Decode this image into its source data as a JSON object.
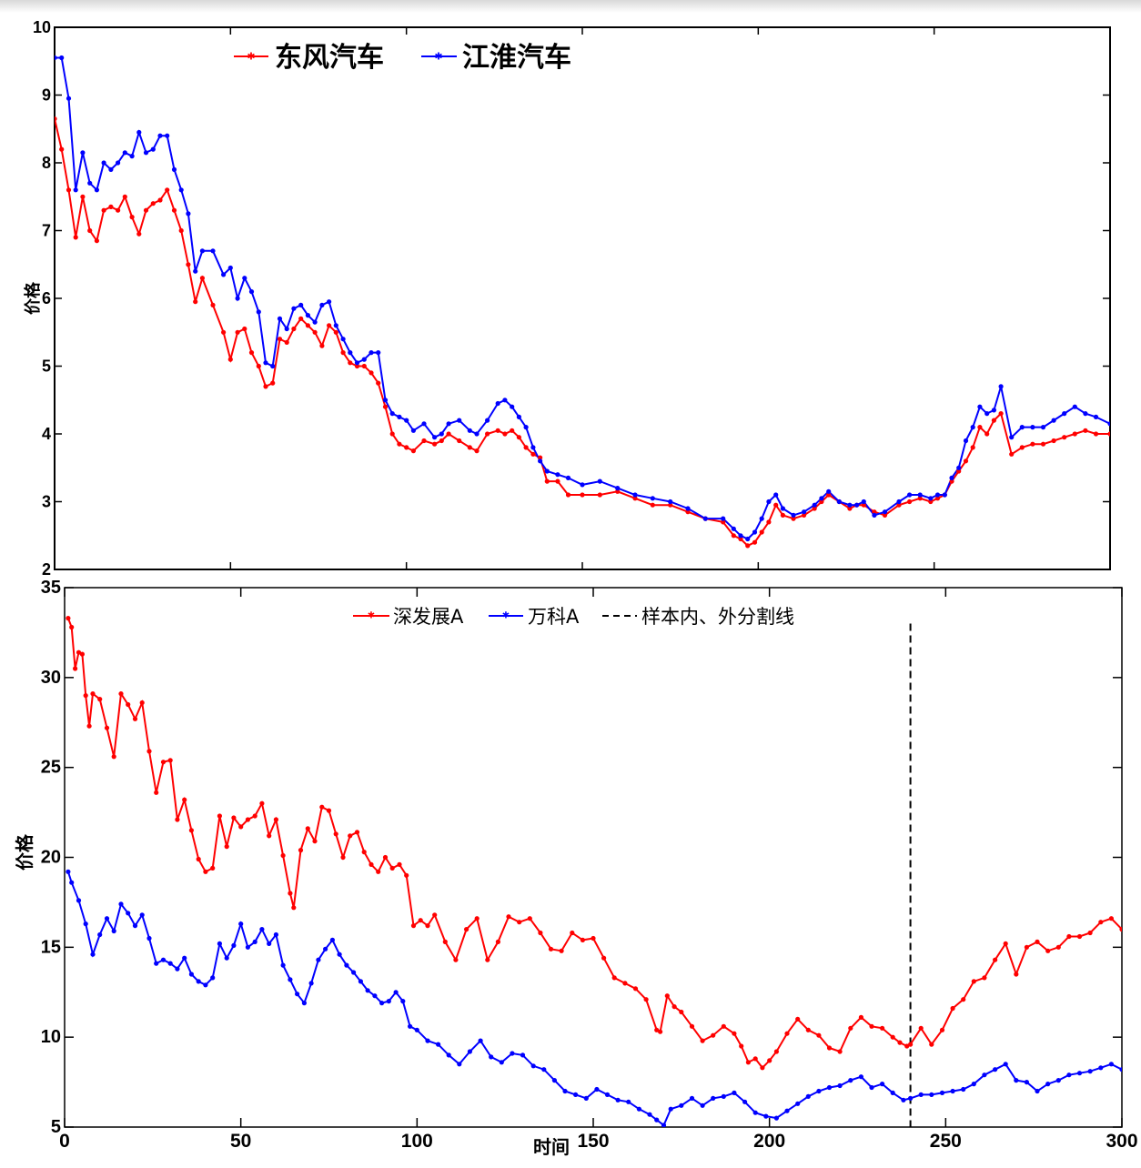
{
  "chart_data": [
    {
      "type": "line",
      "title": "",
      "xlabel": "",
      "ylabel": "价格",
      "xlim": [
        0,
        300
      ],
      "ylim": [
        2,
        10
      ],
      "yticks": [
        "10",
        "9",
        "8",
        "7",
        "6",
        "5",
        "4",
        "3",
        "2"
      ],
      "legend_position": "top-left",
      "series": [
        {
          "name": "东风汽车",
          "color": "#ff0000",
          "marker": "star",
          "x": [
            0,
            2,
            4,
            6,
            8,
            10,
            12,
            14,
            16,
            18,
            20,
            22,
            24,
            26,
            28,
            30,
            32,
            34,
            36,
            38,
            40,
            42,
            45,
            48,
            50,
            52,
            54,
            56,
            58,
            60,
            62,
            64,
            66,
            68,
            70,
            72,
            74,
            76,
            78,
            80,
            82,
            84,
            86,
            88,
            90,
            92,
            94,
            96,
            98,
            100,
            102,
            105,
            108,
            110,
            112,
            115,
            118,
            120,
            123,
            126,
            128,
            130,
            132,
            134,
            136,
            138,
            140,
            143,
            146,
            150,
            155,
            160,
            165,
            170,
            175,
            180,
            185,
            190,
            193,
            195,
            197,
            199,
            201,
            203,
            205,
            207,
            210,
            213,
            216,
            218,
            220,
            223,
            226,
            228,
            230,
            233,
            236,
            240,
            243,
            246,
            249,
            251,
            253,
            255,
            257,
            259,
            261,
            263,
            265,
            267,
            269,
            272,
            275,
            278,
            281,
            284,
            287,
            290,
            293,
            296,
            300
          ],
          "y": [
            8.65,
            8.2,
            7.6,
            6.9,
            7.5,
            7.0,
            6.85,
            7.3,
            7.35,
            7.3,
            7.5,
            7.2,
            6.95,
            7.3,
            7.4,
            7.45,
            7.6,
            7.3,
            7.0,
            6.5,
            5.95,
            6.3,
            5.9,
            5.5,
            5.1,
            5.5,
            5.55,
            5.2,
            5.0,
            4.7,
            4.75,
            5.4,
            5.35,
            5.55,
            5.7,
            5.6,
            5.5,
            5.3,
            5.6,
            5.5,
            5.2,
            5.05,
            5.0,
            5.0,
            4.9,
            4.75,
            4.4,
            4.0,
            3.85,
            3.8,
            3.75,
            3.9,
            3.85,
            3.9,
            4.0,
            3.9,
            3.8,
            3.75,
            4.0,
            4.05,
            4.0,
            4.05,
            3.95,
            3.8,
            3.7,
            3.65,
            3.3,
            3.3,
            3.1,
            3.1,
            3.1,
            3.15,
            3.05,
            2.95,
            2.95,
            2.85,
            2.75,
            2.7,
            2.5,
            2.45,
            2.35,
            2.4,
            2.55,
            2.7,
            2.95,
            2.8,
            2.75,
            2.8,
            2.9,
            3.0,
            3.1,
            3.0,
            2.9,
            2.95,
            2.95,
            2.85,
            2.8,
            2.95,
            3.0,
            3.05,
            3.0,
            3.05,
            3.1,
            3.3,
            3.45,
            3.6,
            3.8,
            4.1,
            4.0,
            4.2,
            4.3,
            3.7,
            3.8,
            3.85,
            3.85,
            3.9,
            3.95,
            4.0,
            4.05,
            4.0,
            4.0
          ]
        },
        {
          "name": "江淮汽车",
          "color": "#0000ff",
          "marker": "star",
          "x": [
            0,
            2,
            4,
            6,
            8,
            10,
            12,
            14,
            16,
            18,
            20,
            22,
            24,
            26,
            28,
            30,
            32,
            34,
            36,
            38,
            40,
            42,
            45,
            48,
            50,
            52,
            54,
            56,
            58,
            60,
            62,
            64,
            66,
            68,
            70,
            72,
            74,
            76,
            78,
            80,
            82,
            84,
            86,
            88,
            90,
            92,
            94,
            96,
            98,
            100,
            102,
            105,
            108,
            110,
            112,
            115,
            118,
            120,
            123,
            126,
            128,
            130,
            132,
            134,
            136,
            138,
            140,
            143,
            146,
            150,
            155,
            160,
            165,
            170,
            175,
            180,
            185,
            190,
            193,
            195,
            197,
            199,
            201,
            203,
            205,
            207,
            210,
            213,
            216,
            218,
            220,
            223,
            226,
            228,
            230,
            233,
            236,
            240,
            243,
            246,
            249,
            251,
            253,
            255,
            257,
            259,
            261,
            263,
            265,
            267,
            269,
            272,
            275,
            278,
            281,
            284,
            287,
            290,
            293,
            296,
            300
          ],
          "y": [
            9.55,
            9.55,
            8.95,
            7.6,
            8.15,
            7.7,
            7.6,
            8.0,
            7.9,
            8.0,
            8.15,
            8.1,
            8.45,
            8.15,
            8.2,
            8.4,
            8.4,
            7.9,
            7.6,
            7.25,
            6.4,
            6.7,
            6.7,
            6.35,
            6.45,
            6.0,
            6.3,
            6.1,
            5.8,
            5.05,
            5.0,
            5.7,
            5.55,
            5.85,
            5.9,
            5.75,
            5.65,
            5.9,
            5.95,
            5.6,
            5.4,
            5.2,
            5.05,
            5.1,
            5.2,
            5.2,
            4.5,
            4.3,
            4.25,
            4.2,
            4.05,
            4.15,
            3.95,
            4.0,
            4.15,
            4.2,
            4.05,
            4.0,
            4.2,
            4.45,
            4.5,
            4.4,
            4.25,
            4.1,
            3.8,
            3.6,
            3.45,
            3.4,
            3.35,
            3.25,
            3.3,
            3.2,
            3.1,
            3.05,
            3.0,
            2.9,
            2.75,
            2.75,
            2.6,
            2.5,
            2.45,
            2.55,
            2.75,
            3.0,
            3.1,
            2.9,
            2.8,
            2.85,
            2.95,
            3.05,
            3.15,
            3.0,
            2.95,
            2.95,
            3.0,
            2.8,
            2.85,
            3.0,
            3.1,
            3.1,
            3.05,
            3.1,
            3.1,
            3.35,
            3.5,
            3.9,
            4.1,
            4.4,
            4.3,
            4.35,
            4.7,
            3.95,
            4.1,
            4.1,
            4.1,
            4.2,
            4.3,
            4.4,
            4.3,
            4.25,
            4.15
          ]
        }
      ]
    },
    {
      "type": "line",
      "title": "",
      "xlabel": "时间",
      "ylabel": "价格",
      "xlim": [
        0,
        300
      ],
      "ylim": [
        5,
        35
      ],
      "xticks": [
        "0",
        "50",
        "100",
        "150",
        "200",
        "250",
        "300"
      ],
      "yticks": [
        "35",
        "30",
        "25",
        "20",
        "15",
        "10",
        "5"
      ],
      "legend_position": "top-center",
      "split_line": {
        "label": "样本内、外分割线",
        "x": 240,
        "y_top": 33
      },
      "series": [
        {
          "name": "深发展A",
          "color": "#ff0000",
          "marker": "star",
          "x": [
            1,
            2,
            3,
            4,
            5,
            6,
            7,
            8,
            10,
            12,
            14,
            16,
            18,
            20,
            22,
            24,
            26,
            28,
            30,
            32,
            34,
            36,
            38,
            40,
            42,
            44,
            46,
            48,
            50,
            52,
            54,
            56,
            58,
            60,
            62,
            64,
            65,
            67,
            69,
            71,
            73,
            75,
            77,
            79,
            81,
            83,
            85,
            87,
            89,
            91,
            93,
            95,
            97,
            99,
            101,
            103,
            105,
            108,
            111,
            114,
            117,
            120,
            123,
            126,
            129,
            132,
            135,
            138,
            141,
            144,
            147,
            150,
            153,
            156,
            159,
            162,
            165,
            168,
            169,
            171,
            173,
            175,
            178,
            181,
            184,
            187,
            190,
            192,
            194,
            196,
            198,
            200,
            202,
            205,
            208,
            211,
            214,
            217,
            220,
            223,
            226,
            229,
            232,
            235,
            237,
            239,
            240,
            243,
            246,
            249,
            252,
            255,
            258,
            261,
            264,
            267,
            270,
            273,
            276,
            279,
            282,
            285,
            288,
            291,
            294,
            297,
            300
          ],
          "y": [
            33.3,
            32.8,
            30.5,
            31.4,
            31.3,
            29.0,
            27.3,
            29.1,
            28.8,
            27.2,
            25.6,
            29.1,
            28.5,
            27.7,
            28.6,
            25.9,
            23.6,
            25.3,
            25.4,
            22.1,
            23.2,
            21.5,
            19.9,
            19.2,
            19.4,
            22.3,
            20.6,
            22.2,
            21.7,
            22.1,
            22.3,
            23.0,
            21.2,
            22.1,
            20.1,
            18.0,
            17.2,
            20.4,
            21.6,
            20.9,
            22.8,
            22.6,
            21.3,
            20.0,
            21.2,
            21.4,
            20.3,
            19.6,
            19.2,
            20.0,
            19.4,
            19.6,
            19.0,
            16.2,
            16.5,
            16.2,
            16.8,
            15.3,
            14.3,
            16.0,
            16.6,
            14.3,
            15.3,
            16.7,
            16.4,
            16.6,
            15.8,
            14.9,
            14.8,
            15.8,
            15.4,
            15.5,
            14.4,
            13.3,
            13.0,
            12.7,
            12.1,
            10.4,
            10.3,
            12.3,
            11.7,
            11.4,
            10.6,
            9.8,
            10.1,
            10.6,
            10.2,
            9.5,
            8.6,
            8.8,
            8.3,
            8.7,
            9.2,
            10.2,
            11.0,
            10.4,
            10.1,
            9.4,
            9.2,
            10.5,
            11.1,
            10.6,
            10.5,
            10.0,
            9.7,
            9.5,
            9.6,
            10.5,
            9.6,
            10.4,
            11.6,
            12.1,
            13.1,
            13.3,
            14.3,
            15.2,
            13.5,
            15.0,
            15.3,
            14.8,
            15.0,
            15.6,
            15.6,
            15.8,
            16.4,
            16.6,
            16.0
          ]
        },
        {
          "name": "万科A",
          "color": "#0000ff",
          "marker": "star",
          "x": [
            1,
            2,
            4,
            6,
            8,
            10,
            12,
            14,
            16,
            18,
            20,
            22,
            24,
            26,
            28,
            30,
            32,
            34,
            36,
            38,
            40,
            42,
            44,
            46,
            48,
            50,
            52,
            54,
            56,
            58,
            60,
            62,
            64,
            66,
            68,
            70,
            72,
            74,
            76,
            78,
            80,
            82,
            84,
            86,
            88,
            90,
            92,
            94,
            96,
            98,
            100,
            103,
            106,
            109,
            112,
            115,
            118,
            121,
            124,
            127,
            130,
            133,
            136,
            139,
            142,
            145,
            148,
            151,
            154,
            157,
            160,
            163,
            166,
            168,
            170,
            172,
            175,
            178,
            181,
            184,
            187,
            190,
            193,
            196,
            199,
            202,
            205,
            208,
            211,
            214,
            217,
            220,
            223,
            226,
            229,
            232,
            235,
            238,
            240,
            243,
            246,
            249,
            252,
            255,
            258,
            261,
            264,
            267,
            270,
            273,
            276,
            279,
            282,
            285,
            288,
            291,
            294,
            297,
            300
          ],
          "y": [
            19.2,
            18.6,
            17.6,
            16.3,
            14.6,
            15.7,
            16.6,
            15.9,
            17.4,
            16.9,
            16.2,
            16.8,
            15.5,
            14.1,
            14.3,
            14.1,
            13.8,
            14.4,
            13.5,
            13.1,
            12.9,
            13.3,
            15.2,
            14.4,
            15.1,
            16.3,
            15.0,
            15.3,
            16.0,
            15.2,
            15.7,
            14.0,
            13.2,
            12.4,
            11.9,
            13.0,
            14.3,
            14.9,
            15.4,
            14.6,
            14.0,
            13.6,
            13.1,
            12.6,
            12.3,
            11.9,
            12.0,
            12.5,
            12.0,
            10.6,
            10.4,
            9.8,
            9.6,
            9.0,
            8.5,
            9.2,
            9.8,
            8.9,
            8.6,
            9.1,
            9.0,
            8.4,
            8.2,
            7.6,
            7.0,
            6.8,
            6.6,
            7.1,
            6.8,
            6.5,
            6.4,
            6.0,
            5.7,
            5.4,
            5.1,
            6.0,
            6.2,
            6.6,
            6.2,
            6.6,
            6.7,
            6.9,
            6.4,
            5.8,
            5.6,
            5.5,
            5.9,
            6.3,
            6.7,
            7.0,
            7.2,
            7.3,
            7.6,
            7.8,
            7.2,
            7.4,
            6.9,
            6.5,
            6.6,
            6.8,
            6.8,
            6.9,
            7.0,
            7.1,
            7.4,
            7.9,
            8.2,
            8.5,
            7.6,
            7.5,
            7.0,
            7.4,
            7.6,
            7.9,
            8.0,
            8.1,
            8.3,
            8.5,
            8.2
          ]
        }
      ]
    }
  ]
}
